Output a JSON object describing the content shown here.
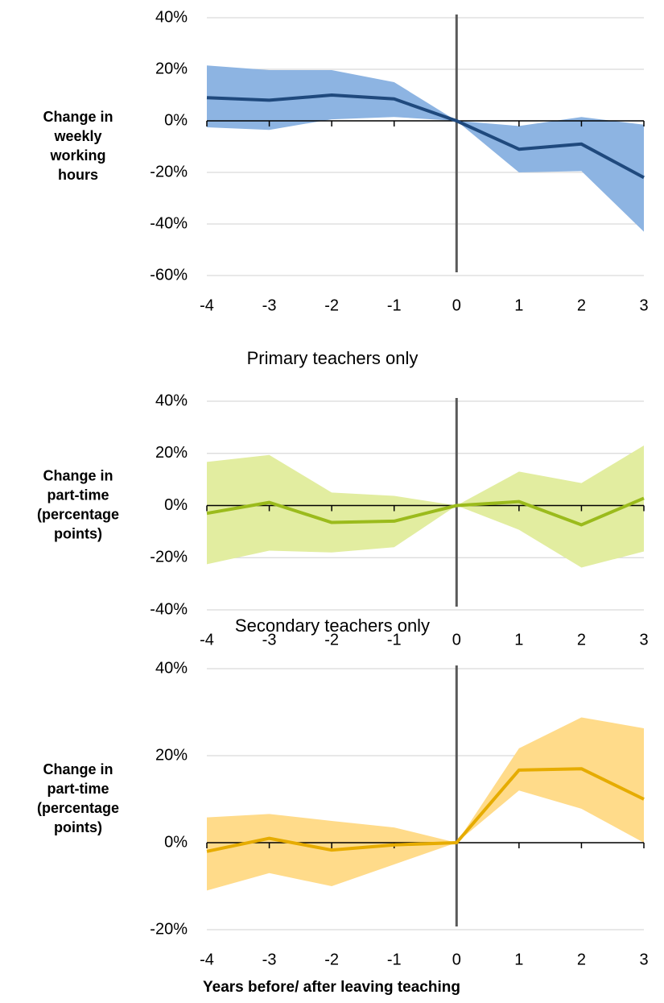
{
  "chart_data": [
    {
      "type": "band-line",
      "y_label": [
        "Change in",
        "weekly",
        "working",
        "hours"
      ],
      "x": [
        -4,
        -3,
        -2,
        -1,
        0,
        1,
        2,
        3
      ],
      "values": [
        9,
        8,
        10,
        8.5,
        0,
        -11,
        -9,
        -22
      ],
      "upper": [
        21.5,
        19.7,
        19.7,
        15,
        0,
        -2,
        1.5,
        -1.5
      ],
      "lower": [
        -2.5,
        -3.5,
        0.6,
        1.5,
        0,
        -20,
        -19.5,
        -43
      ],
      "line_color": "#1f497d",
      "band_color": "#8db4e2",
      "reference_x": 0,
      "xlim": [
        -4,
        3
      ],
      "xticks": [
        -4,
        -3,
        -2,
        -1,
        0,
        1,
        2,
        3
      ],
      "ylim": [
        -60,
        40
      ],
      "yticks": [
        {
          "value": -60,
          "label": "-60%"
        },
        {
          "value": -40,
          "label": "-40%"
        },
        {
          "value": -20,
          "label": "-20%"
        },
        {
          "value": 0,
          "label": "0%"
        },
        {
          "value": 20,
          "label": "20%"
        },
        {
          "value": 40,
          "label": "40%"
        }
      ],
      "grid": true
    },
    {
      "type": "band-line",
      "title": "Primary teachers only",
      "y_label": [
        "Change in",
        "part-time",
        "(percentage",
        "points)"
      ],
      "x": [
        -4,
        -3,
        -2,
        -1,
        0,
        1,
        2,
        3
      ],
      "values": [
        -3,
        1.2,
        -6.5,
        -6,
        0,
        1.5,
        -7.4,
        2.8
      ],
      "upper": [
        16.7,
        19.4,
        5,
        3.7,
        0,
        13,
        8.6,
        23
      ],
      "lower": [
        -22.5,
        -17.3,
        -18,
        -16,
        0,
        -9.3,
        -23.8,
        -17.6
      ],
      "line_color": "#9bbb1c",
      "band_color": "#e2eda0",
      "reference_x": 0,
      "xlim": [
        -4,
        3
      ],
      "xticks": [
        -4,
        -3,
        -2,
        -1,
        0,
        1,
        2,
        3
      ],
      "ylim": [
        -40,
        40
      ],
      "yticks": [
        {
          "value": -40,
          "label": "-40%"
        },
        {
          "value": -20,
          "label": "-20%"
        },
        {
          "value": 0,
          "label": "0%"
        },
        {
          "value": 20,
          "label": "20%"
        },
        {
          "value": 40,
          "label": "40%"
        }
      ],
      "grid": true
    },
    {
      "type": "band-line",
      "title": "Secondary teachers only",
      "y_label": [
        "Change in",
        "part-time",
        "(percentage",
        "points)"
      ],
      "x_label": "Years before/ after leaving teaching",
      "x": [
        -4,
        -3,
        -2,
        -1,
        0,
        1,
        2,
        3
      ],
      "values": [
        -2,
        1,
        -1.7,
        -0.5,
        0,
        16.7,
        17,
        10
      ],
      "upper": [
        5.8,
        6.6,
        5,
        3.5,
        0,
        21.7,
        28.8,
        26.3
      ],
      "lower": [
        -11,
        -7,
        -10,
        -5,
        0,
        12,
        7.8,
        0
      ],
      "line_color": "#e6ac00",
      "band_color": "#ffdb8a",
      "reference_x": 0,
      "xlim": [
        -4,
        3
      ],
      "xticks": [
        -4,
        -3,
        -2,
        -1,
        0,
        1,
        2,
        3
      ],
      "ylim": [
        -20,
        40
      ],
      "yticks": [
        {
          "value": -20,
          "label": "-20%"
        },
        {
          "value": 0,
          "label": "0%"
        },
        {
          "value": 20,
          "label": "20%"
        },
        {
          "value": 40,
          "label": "40%"
        }
      ],
      "grid": true
    }
  ]
}
